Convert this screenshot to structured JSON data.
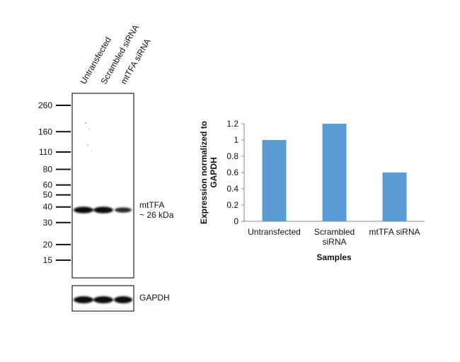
{
  "western_blot": {
    "lane_labels": [
      "Untransfected",
      "Scrambled siRNA",
      "mtTFA siRNA"
    ],
    "markers": [
      {
        "label": "260",
        "kda": 260
      },
      {
        "label": "160",
        "kda": 160
      },
      {
        "label": "110",
        "kda": 110
      },
      {
        "label": "80",
        "kda": 80
      },
      {
        "label": "60",
        "kda": 60
      },
      {
        "label": "50",
        "kda": 50
      },
      {
        "label": "40",
        "kda": 40
      },
      {
        "label": "30",
        "kda": 30
      },
      {
        "label": "20",
        "kda": 20
      },
      {
        "label": "15",
        "kda": 15
      }
    ],
    "band_label_line1": "mtTFA",
    "band_label_line2": "~ 26 kDa",
    "loading_control_label": "GAPDH"
  },
  "chart_data": {
    "type": "bar",
    "categories": [
      "Untransfected",
      "Scrambled siRNA",
      "mtTFA siRNA"
    ],
    "category_tick_lines": [
      [
        "Untransfected"
      ],
      [
        "Scrambled",
        "siRNA"
      ],
      [
        "mtTFA siRNA"
      ]
    ],
    "values": [
      1.0,
      1.2,
      0.6
    ],
    "ylabel_lines": [
      "Expression  normalized to",
      "GAPDH"
    ],
    "xlabel": "Samples",
    "ylim": [
      0,
      1.2
    ],
    "yticks": [
      0,
      0.2,
      0.4,
      0.6,
      0.8,
      1,
      1.2
    ],
    "ytick_labels": [
      "0",
      "0.2",
      "0.4",
      "0.6",
      "0.8",
      "1",
      "1.2"
    ],
    "grid": false,
    "bar_color": "#5b9bd5"
  }
}
